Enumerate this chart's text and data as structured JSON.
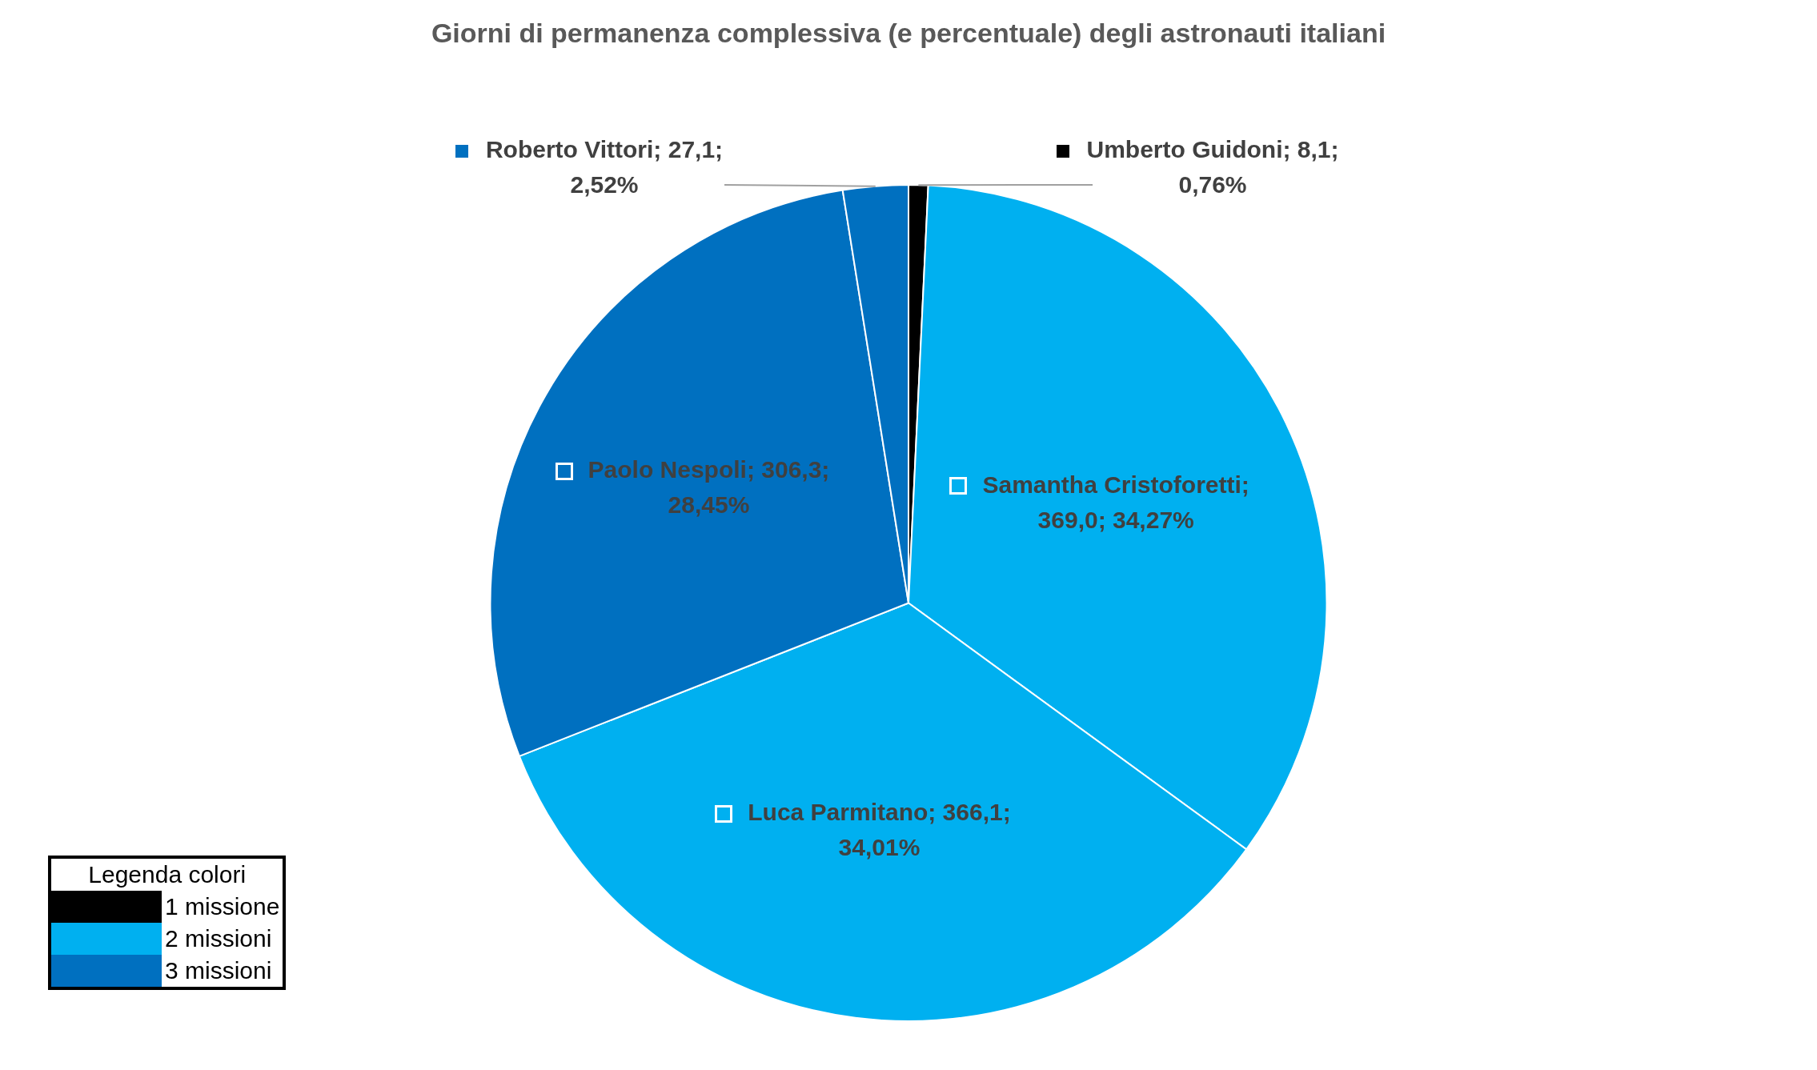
{
  "chart_data": {
    "type": "pie",
    "title": "Giorni di permanenza complessiva (e percentuale) degli astronauti italiani",
    "categories": [
      "Umberto Guidoni",
      "Samantha Cristoforetti",
      "Luca Parmitano",
      "Paolo Nespoli",
      "Roberto Vittori"
    ],
    "values": [
      8.1,
      369.0,
      366.1,
      306.3,
      27.1
    ],
    "colors": [
      "#000000",
      "#00b0f0",
      "#00b0f0",
      "#0070c0",
      "#0070c0"
    ],
    "value_labels": [
      "; 8,1;\n0,76%",
      ";\n369,0; 34,27%",
      "; 366,1;\n34,01%",
      "; 306,3;\n28,45%",
      "; 27,1;\n2,52%"
    ],
    "legend": "top left",
    "legend_title": "Legenda colori",
    "annotations": [
      "1 missione",
      "2 missioni",
      "3 missioni"
    ]
  }
}
